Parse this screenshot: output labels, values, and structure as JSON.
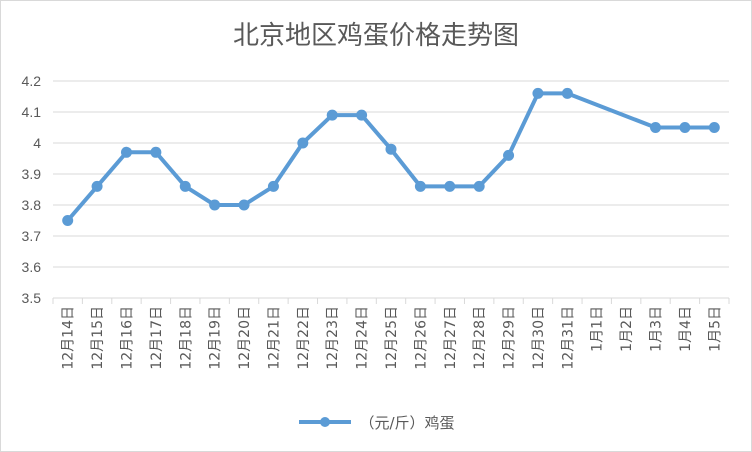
{
  "chart_data": {
    "type": "line",
    "title": "北京地区鸡蛋价格走势图",
    "categories": [
      "12月14日",
      "12月15日",
      "12月16日",
      "12月17日",
      "12月18日",
      "12月19日",
      "12月20日",
      "12月21日",
      "12月22日",
      "12月23日",
      "12月24日",
      "12月25日",
      "12月26日",
      "12月27日",
      "12月28日",
      "12月29日",
      "12月30日",
      "12月31日",
      "1月1日",
      "1月2日",
      "1月3日",
      "1月4日",
      "1月5日"
    ],
    "series": [
      {
        "name": "（元/斤）鸡蛋",
        "values": [
          3.75,
          3.86,
          3.97,
          3.97,
          3.86,
          3.8,
          3.8,
          3.86,
          4.0,
          4.09,
          4.09,
          3.98,
          3.86,
          3.86,
          3.86,
          3.96,
          4.16,
          4.16,
          null,
          null,
          4.05,
          4.05,
          4.05
        ],
        "color": "#5b9bd5"
      }
    ],
    "ylim": [
      3.5,
      4.2
    ],
    "yticks": [
      "3.5",
      "3.6",
      "3.7",
      "3.8",
      "3.9",
      "4",
      "4.1",
      "4.2"
    ],
    "grid": true,
    "legend_position": "bottom",
    "gaps": "connected"
  },
  "colors": {
    "line": "#5b9bd5",
    "grid": "#d9d9d9",
    "text": "#595959"
  }
}
